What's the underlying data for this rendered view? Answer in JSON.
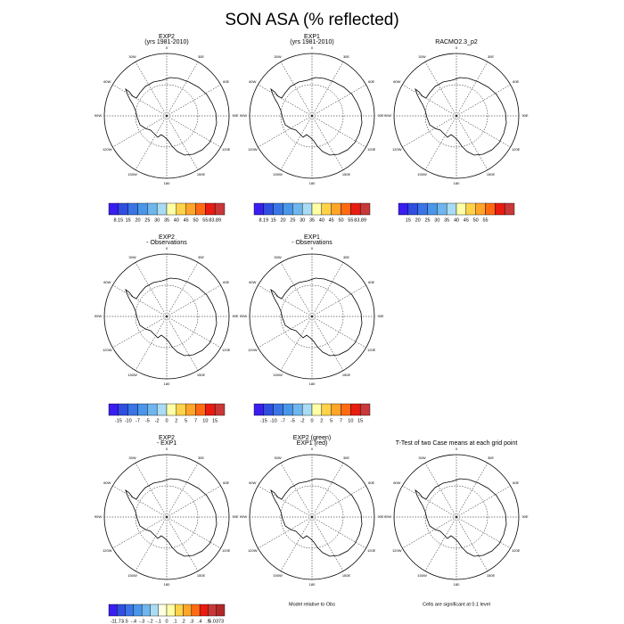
{
  "title": "SON ASA (% reflected)",
  "lon_labels": [
    "0",
    "30E",
    "60E",
    "90E",
    "120E",
    "150E",
    "180",
    "150W",
    "120W",
    "90W",
    "60W",
    "30W"
  ],
  "panels": [
    {
      "title": [
        "EXP2",
        "(yrs 1981-2010)"
      ],
      "colorbar": {
        "colors": [
          "#3a1ef0",
          "#2f4fe0",
          "#3a75e6",
          "#4a96ea",
          "#6fb6ee",
          "#a9dcf4",
          "#ffffa6",
          "#ffd24a",
          "#ffa52a",
          "#ff6a12",
          "#e81c10",
          "#c83838"
        ],
        "labels": [
          "8.15",
          "15",
          "20",
          "25",
          "30",
          "35",
          "40",
          "45",
          "50",
          "55",
          "83.89"
        ]
      }
    },
    {
      "title": [
        "EXP1",
        "(yrs 1981-2010)"
      ],
      "colorbar": {
        "colors": [
          "#3a1ef0",
          "#2f4fe0",
          "#3a75e6",
          "#4a96ea",
          "#6fb6ee",
          "#a9dcf4",
          "#ffffa6",
          "#ffd24a",
          "#ffa52a",
          "#ff6a12",
          "#e81c10",
          "#c83838"
        ],
        "labels": [
          "8.19",
          "15",
          "20",
          "25",
          "30",
          "35",
          "40",
          "45",
          "50",
          "55",
          "83.89"
        ]
      }
    },
    {
      "title": [
        "RACMO2.3_p2"
      ],
      "colorbar": {
        "colors": [
          "#3a1ef0",
          "#2f4fe0",
          "#3a75e6",
          "#4a96ea",
          "#6fb6ee",
          "#a9dcf4",
          "#ffffa6",
          "#ffd24a",
          "#ffa52a",
          "#ff6a12",
          "#e81c10",
          "#c83838"
        ],
        "labels": [
          "15",
          "20",
          "25",
          "30",
          "35",
          "40",
          "45",
          "50",
          "55"
        ]
      }
    },
    {
      "title": [
        "EXP2",
        "- Observations"
      ],
      "colorbar": {
        "colors": [
          "#3a1ef0",
          "#2f4fe0",
          "#3a75e6",
          "#4a96ea",
          "#6fb6ee",
          "#a9dcf4",
          "#ffffa6",
          "#ffd24a",
          "#ffa52a",
          "#ff6a12",
          "#e81c10",
          "#c83838"
        ],
        "labels": [
          "-15",
          "-10",
          "-7",
          "-5",
          "-2",
          "0",
          "2",
          "5",
          "7",
          "10",
          "15"
        ]
      }
    },
    {
      "title": [
        "EXP1",
        "- Observations"
      ],
      "colorbar": {
        "colors": [
          "#3a1ef0",
          "#2f4fe0",
          "#3a75e6",
          "#4a96ea",
          "#6fb6ee",
          "#a9dcf4",
          "#ffffa6",
          "#ffd24a",
          "#ffa52a",
          "#ff6a12",
          "#e81c10",
          "#c83838"
        ],
        "labels": [
          "-15",
          "-10",
          "-7",
          "-5",
          "-2",
          "0",
          "2",
          "5",
          "7",
          "10",
          "15"
        ]
      }
    },
    null,
    {
      "title": [
        "EXP2",
        "- EXP1"
      ],
      "colorbar": {
        "colors": [
          "#3a1ef0",
          "#2f4fe0",
          "#3a75e6",
          "#4a96ea",
          "#6fb6ee",
          "#a9dcf4",
          "#ffffe0",
          "#ffffa6",
          "#ffd24a",
          "#ffa52a",
          "#ff6a12",
          "#e81c10",
          "#c83838",
          "#b02828"
        ],
        "labels": [
          "-11.73",
          "-.5",
          "-.4",
          "-.3",
          "-.2",
          "-.1",
          "0",
          ".1",
          ".2",
          ".3",
          ".4",
          ".5",
          "5.0373"
        ]
      }
    },
    {
      "title": [
        "EXP2 (green)",
        "EXP1 (red)"
      ],
      "note": "Model relative to Obs"
    },
    {
      "title": [
        "T-Test of two Case means at each grid point"
      ],
      "note": "Cells are significant at 0.1 level"
    }
  ]
}
